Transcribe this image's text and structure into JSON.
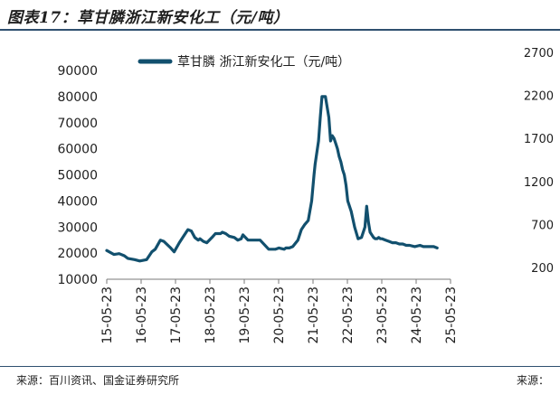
{
  "figure": {
    "title": "图表17：草甘膦浙江新安化工（元/吨）",
    "source_left": "来源：百川资讯、国金证券研究所",
    "source_right": "来源："
  },
  "chart_data": {
    "type": "line",
    "title": "",
    "xlabel": "",
    "ylabel": "",
    "ylim": [
      10000,
      90000
    ],
    "y_ticks": [
      10000,
      20000,
      30000,
      40000,
      50000,
      60000,
      70000,
      80000,
      90000
    ],
    "y_right_ticks": [
      200,
      700,
      1200,
      1700,
      2200,
      2700
    ],
    "x_tick_labels": [
      "15-05-23",
      "16-05-23",
      "17-05-23",
      "18-05-23",
      "19-05-23",
      "20-05-23",
      "21-05-23",
      "22-05-23",
      "23-05-23",
      "24-05-23",
      "25-05-23"
    ],
    "legend_position": "top",
    "grid": false,
    "series_color": "#12506e",
    "series": [
      {
        "name": "草甘膦 浙江新安化工（元/吨）",
        "x": [
          2015.39,
          2015.6,
          2015.75,
          2015.9,
          2016.0,
          2016.2,
          2016.35,
          2016.55,
          2016.7,
          2016.8,
          2016.95,
          2017.05,
          2017.25,
          2017.35,
          2017.5,
          2017.6,
          2017.75,
          2017.85,
          2017.95,
          2018.05,
          2018.1,
          2018.2,
          2018.3,
          2018.45,
          2018.55,
          2018.7,
          2018.75,
          2018.85,
          2018.95,
          2019.1,
          2019.2,
          2019.3,
          2019.35,
          2019.5,
          2019.75,
          2019.85,
          2020.1,
          2020.3,
          2020.4,
          2020.55,
          2020.6,
          2020.7,
          2020.8,
          2020.95,
          2021.05,
          2021.15,
          2021.25,
          2021.35,
          2021.42,
          2021.45,
          2021.55,
          2021.6,
          2021.65,
          2021.7,
          2021.75,
          2021.8,
          2021.85,
          2021.9,
          2021.95,
          2022.0,
          2022.05,
          2022.1,
          2022.15,
          2022.2,
          2022.25,
          2022.3,
          2022.35,
          2022.4,
          2022.5,
          2022.6,
          2022.7,
          2022.8,
          2022.9,
          2022.95,
          2023.0,
          2023.05,
          2023.1,
          2023.15,
          2023.2,
          2023.25,
          2023.3,
          2023.35,
          2023.4,
          2023.5,
          2023.6,
          2023.7,
          2023.8,
          2023.9,
          2024.0,
          2024.1,
          2024.2,
          2024.35,
          2024.5,
          2024.6,
          2024.7,
          2024.8,
          2024.9,
          2025.0
        ],
        "values": [
          21000,
          19500,
          19800,
          19000,
          18000,
          17500,
          17000,
          17500,
          20500,
          21500,
          25000,
          24500,
          22000,
          20500,
          24000,
          26000,
          29000,
          28500,
          26000,
          25000,
          25500,
          24500,
          24000,
          26000,
          27500,
          27500,
          28000,
          27500,
          26500,
          26000,
          25000,
          25500,
          27000,
          25000,
          25000,
          25000,
          21500,
          21500,
          22000,
          21500,
          22000,
          22000,
          22500,
          25000,
          29000,
          31000,
          32500,
          40000,
          50000,
          54000,
          63000,
          72000,
          80000,
          80000,
          80000,
          76000,
          72000,
          63000,
          65000,
          64000,
          62000,
          60000,
          57000,
          55000,
          52000,
          50000,
          46000,
          40000,
          36000,
          30000,
          25500,
          26000,
          30000,
          38000,
          32000,
          28000,
          27000,
          26000,
          25500,
          25500,
          26000,
          25500,
          25500,
          25000,
          24500,
          24000,
          24000,
          23500,
          23500,
          23000,
          23000,
          22500,
          23000,
          22500,
          22500,
          22500,
          22500,
          22000
        ]
      }
    ]
  }
}
